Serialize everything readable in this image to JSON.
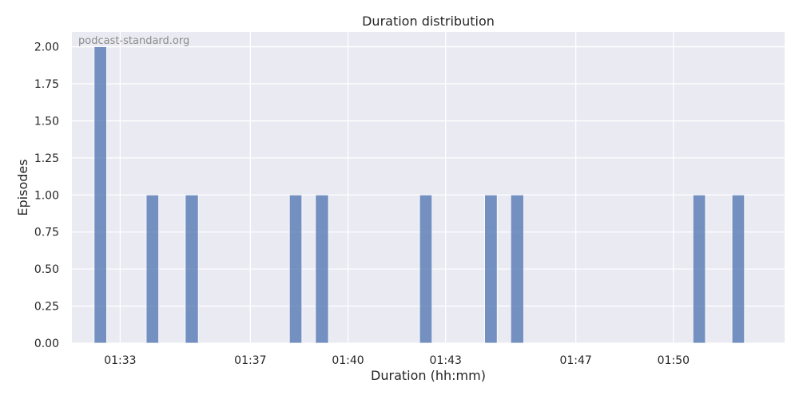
{
  "chart_data": {
    "type": "bar",
    "title": "Duration distribution",
    "xlabel": "Duration (hh:mm)",
    "ylabel": "Episodes",
    "watermark": "podcast-standard.org",
    "x_unit": "hh:mm",
    "xlim": [
      "01:31:31",
      "01:53:25"
    ],
    "ylim": [
      0,
      2.1
    ],
    "x_ticks": [
      "01:33",
      "01:37",
      "01:40",
      "01:43",
      "01:47",
      "01:50"
    ],
    "y_ticks": [
      "0.00",
      "0.25",
      "0.50",
      "0.75",
      "1.00",
      "1.25",
      "1.50",
      "1.75",
      "2.00"
    ],
    "bins": [
      {
        "start": "01:32:12",
        "end": "01:32:35",
        "count": 2
      },
      {
        "start": "01:33:48",
        "end": "01:34:11",
        "count": 1
      },
      {
        "start": "01:35:00",
        "end": "01:35:24",
        "count": 1
      },
      {
        "start": "01:38:12",
        "end": "01:38:35",
        "count": 1
      },
      {
        "start": "01:39:00",
        "end": "01:39:24",
        "count": 1
      },
      {
        "start": "01:42:12",
        "end": "01:42:35",
        "count": 1
      },
      {
        "start": "01:44:12",
        "end": "01:44:35",
        "count": 1
      },
      {
        "start": "01:45:00",
        "end": "01:45:24",
        "count": 1
      },
      {
        "start": "01:50:36",
        "end": "01:50:59",
        "count": 1
      },
      {
        "start": "01:51:48",
        "end": "01:52:11",
        "count": 1
      }
    ],
    "grid": true,
    "colors": {
      "bar": "#4c72b0",
      "background": "#eaeaf2",
      "grid": "#ffffff"
    }
  }
}
